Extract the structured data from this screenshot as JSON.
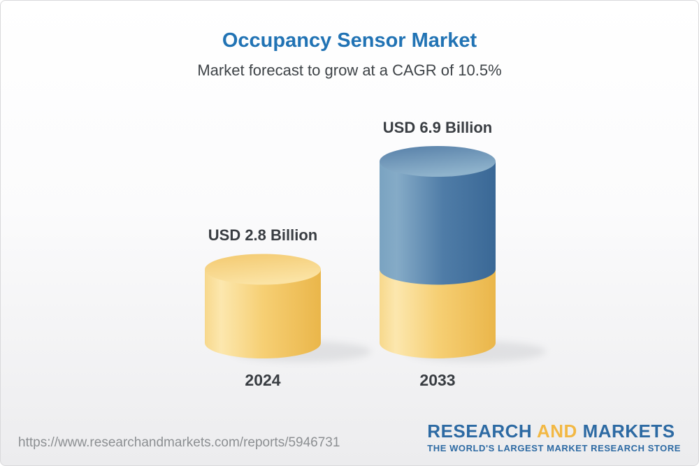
{
  "header": {
    "title": "Occupancy Sensor Market",
    "subtitle": "Market forecast to grow at a CAGR of 10.5%"
  },
  "chart_data": {
    "type": "bar",
    "style": "3d-stacked-cylinders",
    "categories": [
      "2024",
      "2033"
    ],
    "values": [
      2.8,
      6.9
    ],
    "value_labels": [
      "USD 2.8 Billion",
      "USD 6.9 Billion"
    ],
    "unit": "USD Billion",
    "cagr_percent": 10.5,
    "ylim": [
      0,
      6.9
    ],
    "grid": false,
    "legend": "none",
    "colors": {
      "base_segment": "#f2c765",
      "growth_segment": "#4d7da7",
      "label_text": "#393d42",
      "title_blue": "#2173b4"
    }
  },
  "footer": {
    "url": "https://www.researchandmarkets.com/reports/5946731",
    "logo": {
      "word1": "RESEARCH",
      "word2": "AND",
      "word3": "MARKETS",
      "tagline": "THE WORLD'S LARGEST MARKET RESEARCH STORE",
      "brand_blue": "#2d6aa3",
      "brand_gold": "#f2b844"
    }
  }
}
